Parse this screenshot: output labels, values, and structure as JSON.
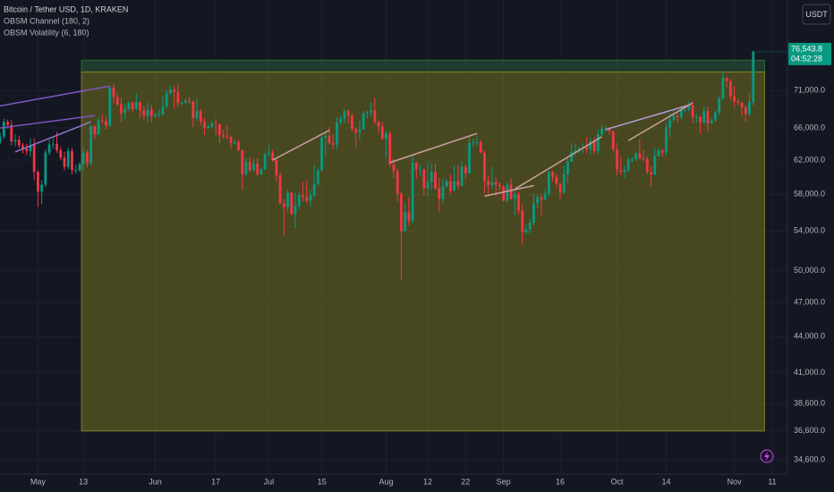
{
  "chart_data": {
    "type": "candlestick",
    "title": "Bitcoin / Tether USD, 1D, KRAKEN",
    "indicators": [
      "OBSM Channel (180, 2)",
      "OBSM Volatility (6, 180)"
    ],
    "currency_button": "USDT",
    "last_price_label": "76,543.8",
    "countdown": "04:52:28",
    "log_scale": true,
    "grid": true,
    "up_color": "#089981",
    "down_color": "#f23645",
    "ylim": [
      33950,
      83200
    ],
    "yticks": [
      {
        "value": 71000,
        "label": "71,000.0"
      },
      {
        "value": 66000,
        "label": "66,000.0"
      },
      {
        "value": 62000,
        "label": "62,000.0"
      },
      {
        "value": 58000,
        "label": "58,000.0"
      },
      {
        "value": 54000,
        "label": "54,000.0"
      },
      {
        "value": 50000,
        "label": "50,000.0"
      },
      {
        "value": 47000,
        "label": "47,000.0"
      },
      {
        "value": 44000,
        "label": "44,000.0"
      },
      {
        "value": 41000,
        "label": "41,000.0"
      },
      {
        "value": 38600,
        "label": "38,600.0"
      },
      {
        "value": 36600,
        "label": "36,600.0"
      },
      {
        "value": 34600,
        "label": "34,600.0"
      }
    ],
    "categories": [
      null,
      null,
      null,
      null,
      null,
      null,
      null,
      null,
      null,
      null,
      "May",
      null,
      null,
      null,
      null,
      null,
      null,
      null,
      null,
      null,
      null,
      null,
      "13",
      null,
      null,
      null,
      null,
      null,
      null,
      null,
      null,
      null,
      null,
      null,
      null,
      null,
      null,
      null,
      null,
      null,
      null,
      "Jun",
      null,
      null,
      null,
      null,
      null,
      null,
      null,
      null,
      null,
      null,
      null,
      null,
      null,
      null,
      null,
      "17",
      null,
      null,
      null,
      null,
      null,
      null,
      null,
      null,
      null,
      null,
      null,
      null,
      null,
      "Jul",
      null,
      null,
      null,
      null,
      null,
      null,
      null,
      null,
      null,
      null,
      null,
      null,
      null,
      "15",
      null,
      null,
      null,
      null,
      null,
      null,
      null,
      null,
      null,
      null,
      null,
      null,
      null,
      null,
      null,
      null,
      "Aug",
      null,
      null,
      null,
      null,
      null,
      null,
      null,
      null,
      null,
      null,
      "12",
      null,
      null,
      null,
      null,
      null,
      null,
      null,
      null,
      null,
      "22",
      null,
      null,
      null,
      null,
      null,
      null,
      null,
      null,
      null,
      "Sep",
      null,
      null,
      null,
      null,
      null,
      null,
      null,
      null,
      null,
      null,
      null,
      null,
      null,
      null,
      "16",
      null,
      null,
      null,
      null,
      null,
      null,
      null,
      null,
      null,
      null,
      null,
      null,
      null,
      null,
      "Oct",
      null,
      null,
      null,
      null,
      null,
      null,
      null,
      null,
      null,
      null,
      null,
      null,
      "14",
      null,
      null,
      null,
      null,
      null,
      null,
      null,
      null,
      null,
      null,
      null,
      null,
      null,
      null,
      null,
      null,
      null,
      "Nov",
      null,
      null,
      null,
      null,
      null,
      null,
      null,
      null,
      null,
      "11"
    ],
    "open": [
      64200,
      64900,
      66800,
      66400,
      64300,
      64500,
      63800,
      63400,
      63100,
      63800,
      60600,
      58300,
      59100,
      62900,
      63900,
      64000,
      63200,
      62300,
      61200,
      63100,
      60800,
      60800,
      61500,
      62900,
      61600,
      66200,
      65200,
      67000,
      66900,
      66300,
      71400,
      70100,
      69100,
      67900,
      68500,
      69300,
      68500,
      69400,
      68300,
      67600,
      68400,
      67500,
      67700,
      67800,
      68800,
      70600,
      71100,
      70800,
      69300,
      69300,
      69600,
      69500,
      67300,
      68200,
      66800,
      66000,
      66200,
      66600,
      66500,
      65100,
      64900,
      64800,
      64100,
      64200,
      63200,
      60300,
      61800,
      60800,
      61600,
      60300,
      60900,
      62700,
      62900,
      62000,
      60200,
      57000,
      56600,
      58200,
      55800,
      56700,
      57900,
      57700,
      57300,
      57900,
      59200,
      60800,
      64800,
      65000,
      64100,
      63900,
      66700,
      67200,
      68200,
      67600,
      65900,
      65400,
      65800,
      67900,
      68000,
      68300,
      66800,
      66200,
      64600,
      65300,
      61500,
      60700,
      58100,
      54000,
      56000,
      55100,
      61700,
      60900,
      60900,
      58700,
      59400,
      60600,
      58700,
      57500,
      58900,
      59500,
      58400,
      59500,
      59000,
      61200,
      60400,
      64100,
      64200,
      64200,
      62900,
      59500,
      59000,
      59400,
      59100,
      58900,
      57300,
      59100,
      57500,
      58000,
      56200,
      53900,
      54200,
      54900,
      57000,
      57700,
      57400,
      58100,
      60600,
      60000,
      59200,
      58200,
      60300,
      61800,
      63000,
      63200,
      63400,
      63600,
      63300,
      64300,
      63100,
      65200,
      65900,
      65900,
      65600,
      63300,
      60800,
      60600,
      60800,
      62100,
      62100,
      62800,
      62200,
      62100,
      60600,
      60300,
      62500,
      63200,
      62900,
      66100,
      67000,
      67600,
      67400,
      68400,
      68400,
      69000,
      67400,
      67400,
      66700,
      68200,
      66600,
      67000,
      68000,
      69900,
      72700,
      72300,
      70200,
      69500,
      69300,
      68700,
      67800,
      69400,
      null,
      null,
      null,
      null,
      null
    ],
    "high": [
      65400,
      67200,
      67100,
      67000,
      65200,
      65000,
      64100,
      64000,
      64700,
      64700,
      60800,
      59600,
      63300,
      64500,
      64700,
      65500,
      63600,
      63000,
      63500,
      63500,
      61500,
      61800,
      63500,
      63200,
      66400,
      66400,
      67400,
      67700,
      67400,
      71500,
      71900,
      70600,
      70000,
      69200,
      69500,
      69500,
      70600,
      69500,
      68900,
      69500,
      69000,
      68000,
      68400,
      70200,
      71000,
      71700,
      71600,
      71900,
      69500,
      69900,
      70100,
      69600,
      70000,
      68400,
      67300,
      66400,
      66900,
      67100,
      66600,
      65700,
      66400,
      65000,
      64500,
      64500,
      63300,
      62300,
      62400,
      62200,
      62200,
      61100,
      63000,
      63800,
      63300,
      62300,
      60500,
      57500,
      58500,
      58300,
      58200,
      58300,
      59400,
      59500,
      58500,
      61400,
      61000,
      64900,
      65300,
      66100,
      65200,
      67400,
      67600,
      68500,
      68400,
      67900,
      66100,
      67000,
      68200,
      68300,
      69400,
      70000,
      66900,
      66800,
      65600,
      65600,
      62200,
      61000,
      58300,
      57100,
      57700,
      62700,
      61800,
      61500,
      61000,
      61800,
      61600,
      61600,
      59900,
      59800,
      59700,
      60300,
      61400,
      61400,
      61800,
      61400,
      64900,
      64600,
      65000,
      64500,
      63200,
      60200,
      61200,
      59900,
      59400,
      59100,
      59400,
      59800,
      58500,
      58300,
      56900,
      54800,
      55300,
      58100,
      58000,
      58000,
      58600,
      60700,
      60700,
      60400,
      59300,
      61300,
      62200,
      64100,
      64000,
      63600,
      64100,
      64800,
      64700,
      64800,
      65800,
      66500,
      66300,
      66100,
      65600,
      64100,
      62400,
      61400,
      62400,
      62400,
      63000,
      64500,
      63200,
      62500,
      61300,
      63400,
      63500,
      63300,
      66500,
      67900,
      68400,
      68000,
      68900,
      68700,
      69500,
      69500,
      67900,
      67600,
      68800,
      68800,
      67300,
      68300,
      70200,
      73600,
      72900,
      72600,
      71600,
      69900,
      69500,
      69000,
      70600,
      76700,
      null,
      null,
      null,
      null,
      null
    ],
    "low": [
      63900,
      64600,
      65900,
      63800,
      63700,
      63500,
      62800,
      62600,
      62400,
      59600,
      56600,
      56900,
      58800,
      62600,
      63400,
      62900,
      62000,
      60800,
      60900,
      60300,
      60400,
      60600,
      60800,
      61100,
      61400,
      64600,
      65100,
      66600,
      65800,
      66100,
      69200,
      68900,
      66700,
      67100,
      68200,
      68000,
      68300,
      67200,
      67100,
      66700,
      66700,
      67300,
      67400,
      67600,
      68600,
      70400,
      68500,
      68800,
      69000,
      69200,
      69200,
      66100,
      66900,
      66300,
      65100,
      65900,
      66000,
      65000,
      64100,
      64700,
      64600,
      63400,
      63900,
      63100,
      58500,
      60000,
      60600,
      60600,
      60100,
      60200,
      60800,
      62500,
      61800,
      59500,
      56900,
      53500,
      56000,
      55700,
      54300,
      56300,
      57200,
      57000,
      56600,
      57700,
      59000,
      60700,
      62500,
      63900,
      63300,
      63300,
      66400,
      66600,
      66600,
      65500,
      63500,
      64500,
      65800,
      67200,
      67500,
      66500,
      65400,
      64500,
      62300,
      61200,
      59900,
      57200,
      49100,
      54000,
      54600,
      54800,
      59800,
      60100,
      57800,
      57700,
      58500,
      58500,
      56100,
      57100,
      58800,
      58100,
      58400,
      58600,
      58900,
      59800,
      60400,
      63600,
      63800,
      62800,
      58100,
      57800,
      58700,
      57800,
      58400,
      57200,
      57100,
      57400,
      55700,
      55800,
      52600,
      53700,
      53700,
      54600,
      56400,
      55600,
      57300,
      57700,
      59500,
      58800,
      57500,
      58100,
      59200,
      61800,
      62400,
      62800,
      62800,
      62800,
      62700,
      62700,
      62700,
      64900,
      65500,
      65100,
      62900,
      60200,
      60200,
      59900,
      60500,
      61700,
      61900,
      62100,
      61900,
      60300,
      58900,
      60200,
      62400,
      62400,
      62500,
      64800,
      66800,
      66700,
      67100,
      68000,
      68200,
      66600,
      66600,
      65300,
      66500,
      65500,
      66500,
      66800,
      67600,
      69700,
      71400,
      69700,
      68800,
      69000,
      67500,
      66800,
      67500,
      69000,
      null,
      null,
      null,
      null,
      null
    ],
    "close": [
      64900,
      66800,
      66400,
      64300,
      64500,
      63800,
      63400,
      63100,
      63800,
      60600,
      58300,
      59100,
      62900,
      63900,
      64000,
      63200,
      62300,
      61200,
      63100,
      60800,
      60800,
      61500,
      62900,
      61600,
      66200,
      65200,
      67000,
      66900,
      66300,
      71400,
      70100,
      69100,
      67900,
      68500,
      69300,
      68500,
      69400,
      68300,
      67600,
      68400,
      67500,
      67700,
      67800,
      68800,
      70600,
      71100,
      70800,
      69300,
      69300,
      69600,
      69500,
      67300,
      68200,
      66800,
      66000,
      66200,
      66600,
      66500,
      65100,
      64900,
      64800,
      64100,
      64200,
      63200,
      60300,
      61800,
      60800,
      61600,
      60300,
      60900,
      62700,
      62900,
      62000,
      60200,
      57000,
      56600,
      58200,
      55800,
      56700,
      57900,
      57700,
      57300,
      57900,
      59200,
      60800,
      64800,
      65000,
      64100,
      63900,
      66700,
      67200,
      68200,
      67600,
      65900,
      65400,
      65800,
      67900,
      68000,
      68300,
      66800,
      66200,
      64600,
      65300,
      61500,
      60700,
      58100,
      54000,
      56000,
      55100,
      61700,
      60900,
      60900,
      58700,
      59400,
      60600,
      58700,
      57500,
      58900,
      59500,
      58400,
      59500,
      59000,
      61200,
      60400,
      64100,
      64200,
      64200,
      62900,
      59500,
      59000,
      59400,
      59100,
      58900,
      57300,
      59100,
      57500,
      58000,
      56200,
      53900,
      54200,
      54900,
      57000,
      57700,
      57400,
      58100,
      60600,
      60000,
      59200,
      58200,
      60300,
      61800,
      63000,
      63200,
      63400,
      63600,
      63300,
      64300,
      63100,
      65200,
      65900,
      65900,
      65600,
      63300,
      60800,
      60600,
      60800,
      62100,
      62100,
      62800,
      62200,
      62100,
      60600,
      60300,
      62500,
      63200,
      62900,
      66100,
      67000,
      67600,
      67400,
      68400,
      68400,
      69000,
      67400,
      67400,
      66700,
      68200,
      66600,
      67000,
      68000,
      69900,
      72700,
      72300,
      70200,
      69500,
      69300,
      68700,
      67800,
      69400,
      76543.8,
      null,
      null,
      null,
      null,
      null
    ],
    "channel": {
      "start": 22,
      "end": 202,
      "upper": 75300,
      "middle": 73600,
      "lower": 36600,
      "fill_color": "#8a8420",
      "band_color": "#2e6b3e"
    },
    "trend_lines": [
      {
        "x": [
          0,
          29
        ],
        "y": [
          68900,
          71600
        ],
        "color": "#7e57c2"
      },
      {
        "x": [
          0,
          25
        ],
        "y": [
          66000,
          67600
        ],
        "color": "#7e57c2"
      },
      {
        "x": [
          4,
          24
        ],
        "y": [
          63000,
          66800
        ],
        "color": "#9575cd"
      },
      {
        "x": [
          72,
          87
        ],
        "y": [
          62000,
          65700
        ],
        "color": "#c9a0a0"
      },
      {
        "x": [
          103,
          126
        ],
        "y": [
          61700,
          65300
        ],
        "color": "#c9a0a0"
      },
      {
        "x": [
          128,
          141
        ],
        "y": [
          57800,
          59000
        ],
        "color": "#c9a0a0"
      },
      {
        "x": [
          136,
          159
        ],
        "y": [
          58600,
          64900
        ],
        "color": "#c9a0a0"
      },
      {
        "x": [
          160,
          182
        ],
        "y": [
          65800,
          69000
        ],
        "color": "#b39ddb"
      },
      {
        "x": [
          166,
          183
        ],
        "y": [
          64400,
          69300
        ],
        "color": "#c9a0a0"
      }
    ]
  }
}
